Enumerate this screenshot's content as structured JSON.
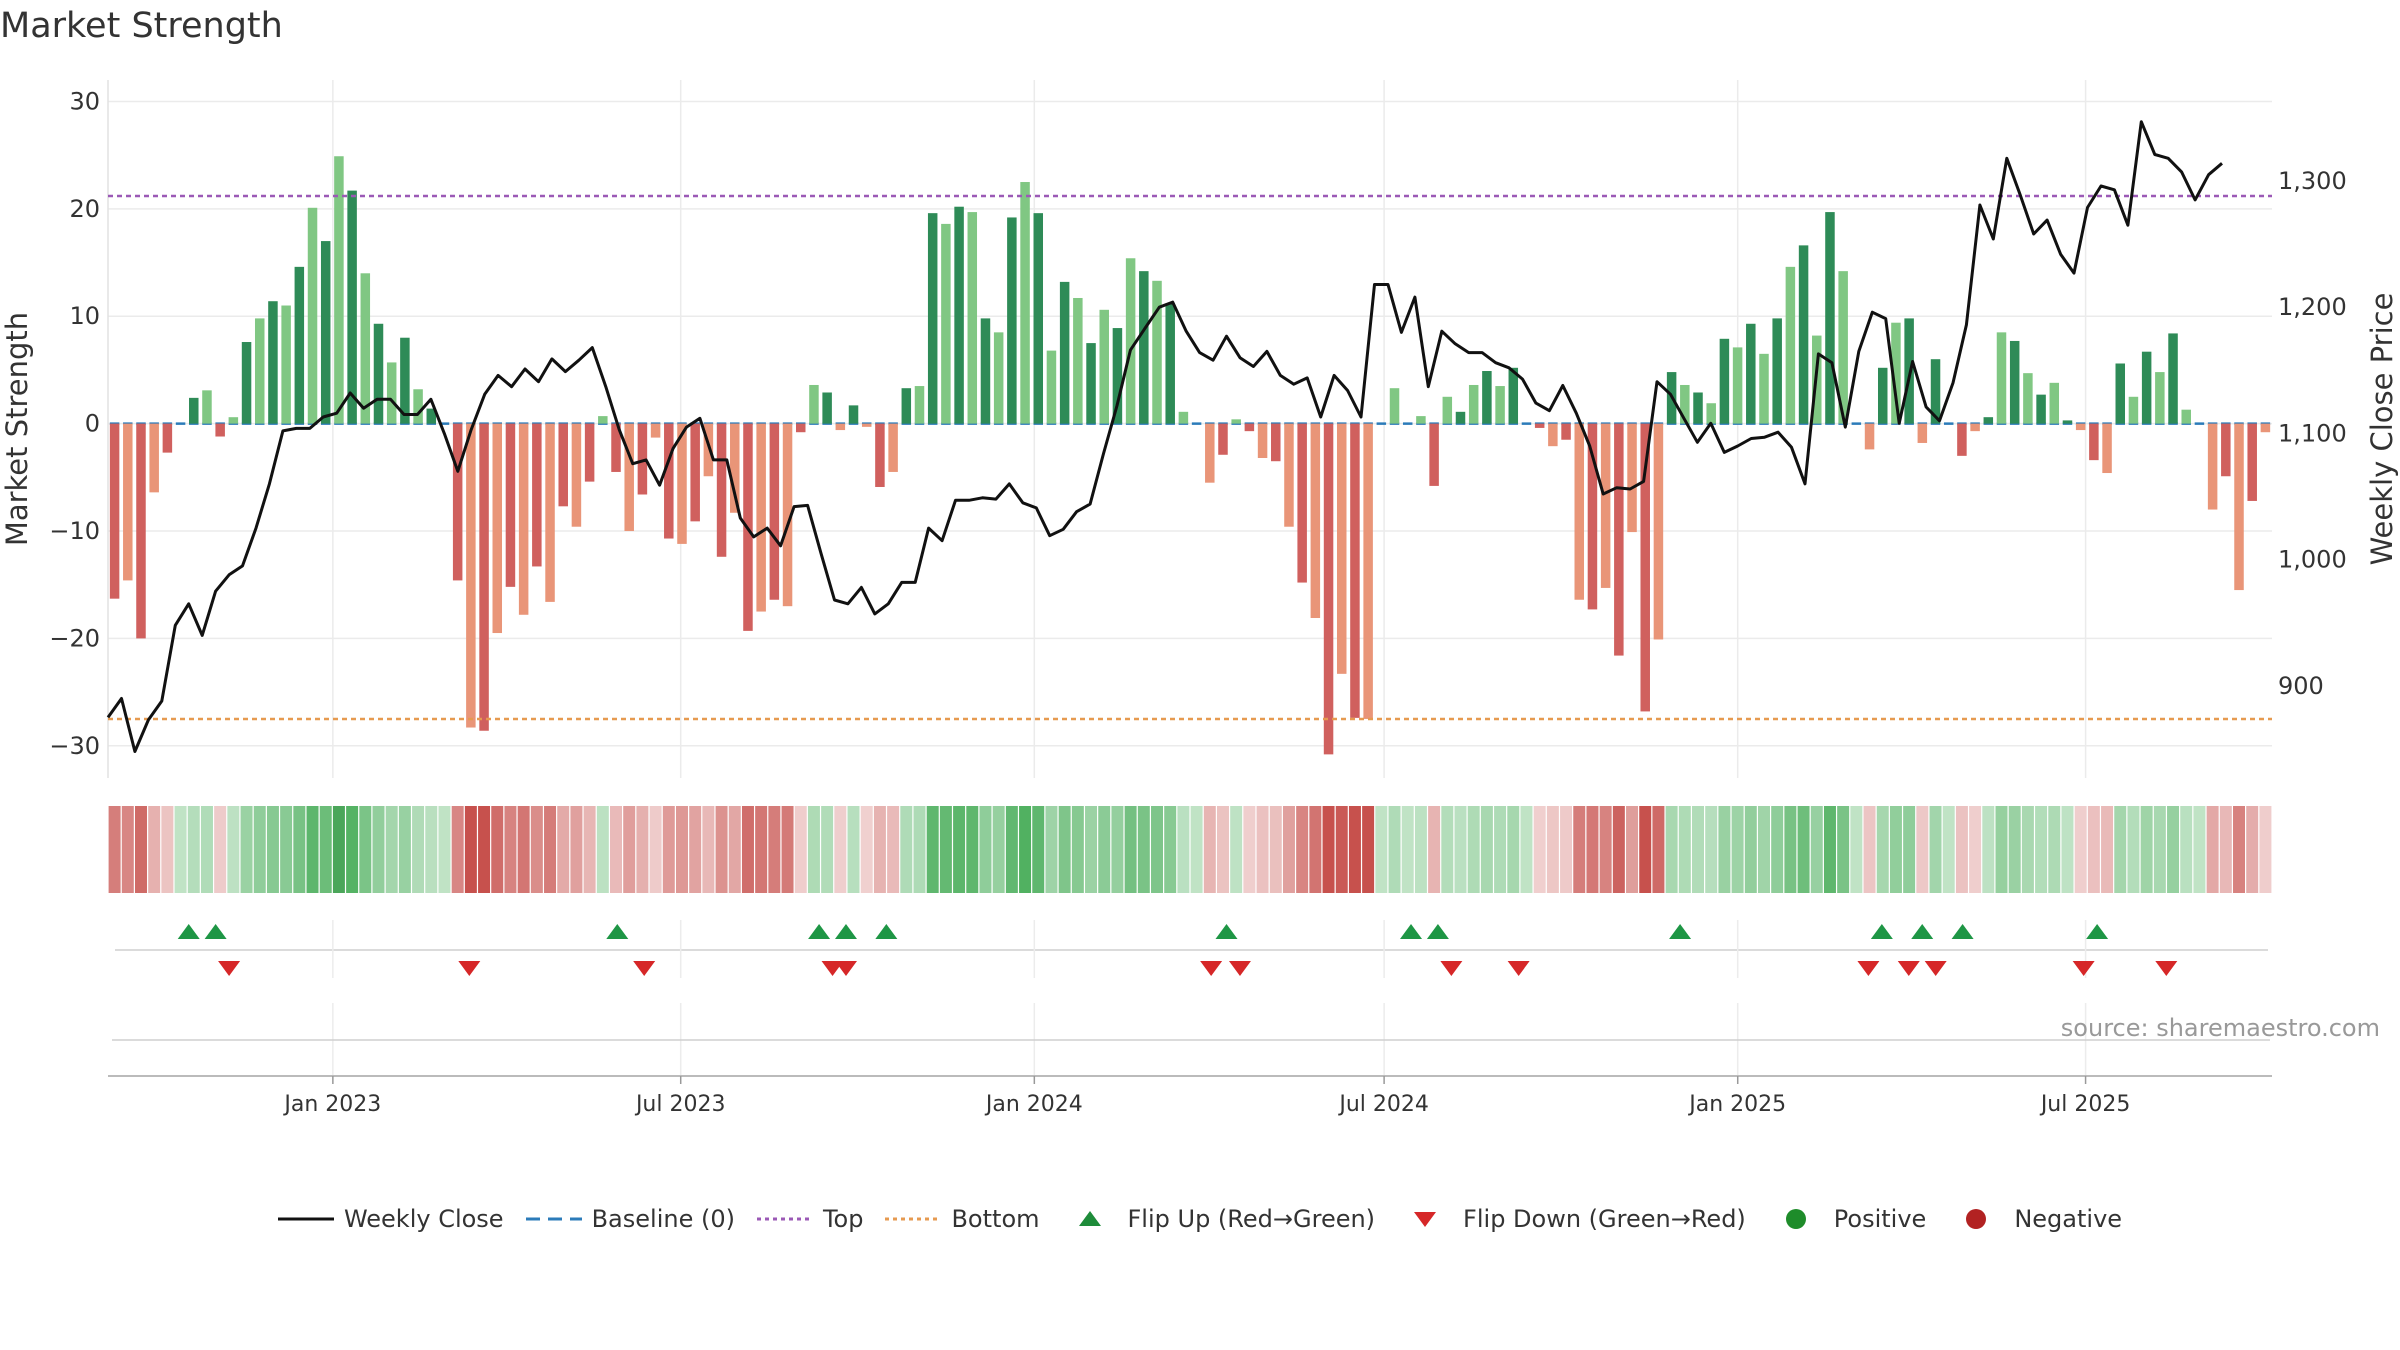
{
  "chart_data": {
    "type": "bar",
    "title": "Market Strength",
    "ylabel_left": "Market Strength",
    "ylabel_right": "Weekly Close Price",
    "left_axis": {
      "ylim": [
        -33,
        32
      ],
      "ticks": [
        30,
        20,
        10,
        0,
        -10,
        -20,
        -30
      ],
      "tick_labels": [
        "30",
        "20",
        "10",
        "0",
        "−10",
        "−20",
        "−30"
      ]
    },
    "right_axis": {
      "ylim": [
        827,
        1380
      ],
      "ticks": [
        1300,
        1200,
        1100,
        1000,
        900
      ],
      "tick_labels": [
        "1,300",
        "1,200",
        "1,100",
        "1,000",
        "900"
      ]
    },
    "x_axis": {
      "start": "2022-09-06",
      "end": "2025-10-06",
      "ticks": [
        "2023-01-01",
        "2023-07-01",
        "2024-01-01",
        "2024-07-01",
        "2025-01-01",
        "2025-07-01"
      ],
      "tick_labels": [
        "Jan 2023",
        "Jul 2023",
        "Jan 2024",
        "Jul 2024",
        "Jan 2025",
        "Jul 2025"
      ]
    },
    "grid": true,
    "reference_lines": {
      "top": 21.2,
      "bottom": -27.5,
      "baseline": 0
    },
    "strength_values": [
      -16.3,
      -14.6,
      -20,
      -6.4,
      -2.7,
      0,
      2.4,
      3.1,
      -1.2,
      0.6,
      7.6,
      9.8,
      11.4,
      11,
      14.6,
      20.1,
      17,
      24.9,
      21.7,
      14,
      9.3,
      5.7,
      8,
      3.2,
      1.4,
      0,
      -14.6,
      -28.3,
      -28.6,
      -19.5,
      -15.2,
      -17.8,
      -13.3,
      -16.6,
      -7.7,
      -9.6,
      -5.4,
      0.7,
      -4.5,
      -10,
      -6.6,
      -1.3,
      -10.7,
      -11.2,
      -9.1,
      -4.9,
      -12.4,
      -8.3,
      -19.3,
      -17.5,
      -16.4,
      -17,
      -0.8,
      3.6,
      2.9,
      -0.6,
      1.7,
      -0.3,
      -5.9,
      -4.5,
      3.3,
      3.5,
      19.6,
      18.6,
      20.2,
      19.7,
      9.8,
      8.5,
      19.2,
      22.5,
      19.6,
      6.8,
      13.2,
      11.7,
      7.5,
      10.6,
      8.9,
      15.4,
      14.2,
      13.3,
      11.2,
      1.1,
      0,
      -5.5,
      -2.9,
      0.4,
      -0.7,
      -3.2,
      -3.5,
      -9.6,
      -14.8,
      -18.1,
      -30.8,
      -23.3,
      -27.4,
      -27.5,
      0,
      3.3,
      0,
      0.7,
      -5.8,
      2.5,
      1.1,
      3.6,
      4.9,
      3.5,
      5.2,
      0,
      -0.4,
      -2.1,
      -1.5,
      -16.4,
      -17.3,
      -15.3,
      -21.6,
      -10.1,
      -26.8,
      -20.1,
      4.8,
      3.6,
      2.9,
      1.9,
      7.9,
      7.1,
      9.3,
      6.5,
      9.8,
      14.6,
      16.6,
      8.2,
      19.7,
      14.2,
      0,
      -2.4,
      5.2,
      9.4,
      9.8,
      -1.8,
      6,
      0,
      -3,
      -0.7,
      0.6,
      8.5,
      7.7,
      4.7,
      2.7,
      3.8,
      0.3,
      -0.6,
      -3.4,
      -4.6,
      5.6,
      2.5,
      6.7,
      4.8,
      8.4,
      1.3,
      0,
      -8,
      -4.9,
      -15.5,
      -7.2,
      -0.8
    ],
    "weekly_close": [
      {
        "x": "2022-09-06",
        "y": 875
      },
      {
        "x": "2022-09-13",
        "y": 890
      },
      {
        "x": "2022-09-20",
        "y": 848
      },
      {
        "x": "2022-09-27",
        "y": 873
      },
      {
        "x": "2022-10-04",
        "y": 888
      },
      {
        "x": "2022-10-11",
        "y": 948
      },
      {
        "x": "2022-10-18",
        "y": 965
      },
      {
        "x": "2022-10-25",
        "y": 940
      },
      {
        "x": "2022-11-01",
        "y": 975
      },
      {
        "x": "2022-11-08",
        "y": 988
      },
      {
        "x": "2022-11-15",
        "y": 995
      },
      {
        "x": "2022-11-22",
        "y": 1025
      },
      {
        "x": "2022-11-29",
        "y": 1060
      },
      {
        "x": "2022-12-06",
        "y": 1102
      },
      {
        "x": "2022-12-13",
        "y": 1104
      },
      {
        "x": "2022-12-20",
        "y": 1104
      },
      {
        "x": "2022-12-27",
        "y": 1113
      },
      {
        "x": "2023-01-03",
        "y": 1116
      },
      {
        "x": "2023-01-10",
        "y": 1132
      },
      {
        "x": "2023-01-17",
        "y": 1120
      },
      {
        "x": "2023-01-24",
        "y": 1127
      },
      {
        "x": "2023-01-31",
        "y": 1127
      },
      {
        "x": "2023-02-07",
        "y": 1115
      },
      {
        "x": "2023-02-14",
        "y": 1115
      },
      {
        "x": "2023-02-21",
        "y": 1127
      },
      {
        "x": "2023-02-28",
        "y": 1100
      },
      {
        "x": "2023-03-07",
        "y": 1070
      },
      {
        "x": "2023-03-14",
        "y": 1103
      },
      {
        "x": "2023-03-21",
        "y": 1131
      },
      {
        "x": "2023-03-28",
        "y": 1146
      },
      {
        "x": "2023-04-04",
        "y": 1137
      },
      {
        "x": "2023-04-11",
        "y": 1151
      },
      {
        "x": "2023-04-18",
        "y": 1141
      },
      {
        "x": "2023-04-25",
        "y": 1159
      },
      {
        "x": "2023-05-02",
        "y": 1149
      },
      {
        "x": "2023-05-09",
        "y": 1158
      },
      {
        "x": "2023-05-16",
        "y": 1168
      },
      {
        "x": "2023-05-23",
        "y": 1137
      },
      {
        "x": "2023-05-30",
        "y": 1103
      },
      {
        "x": "2023-06-06",
        "y": 1076
      },
      {
        "x": "2023-06-13",
        "y": 1079
      },
      {
        "x": "2023-06-20",
        "y": 1059
      },
      {
        "x": "2023-06-27",
        "y": 1088
      },
      {
        "x": "2023-07-04",
        "y": 1105
      },
      {
        "x": "2023-07-11",
        "y": 1112
      },
      {
        "x": "2023-07-18",
        "y": 1079
      },
      {
        "x": "2023-07-25",
        "y": 1079
      },
      {
        "x": "2023-08-01",
        "y": 1033
      },
      {
        "x": "2023-08-08",
        "y": 1018
      },
      {
        "x": "2023-08-15",
        "y": 1025
      },
      {
        "x": "2023-08-22",
        "y": 1011
      },
      {
        "x": "2023-08-29",
        "y": 1042
      },
      {
        "x": "2023-09-05",
        "y": 1043
      },
      {
        "x": "2023-09-12",
        "y": 1005
      },
      {
        "x": "2023-09-19",
        "y": 968
      },
      {
        "x": "2023-09-26",
        "y": 965
      },
      {
        "x": "2023-10-03",
        "y": 978
      },
      {
        "x": "2023-10-10",
        "y": 957
      },
      {
        "x": "2023-10-17",
        "y": 965
      },
      {
        "x": "2023-10-24",
        "y": 982
      },
      {
        "x": "2023-10-31",
        "y": 982
      },
      {
        "x": "2023-11-07",
        "y": 1025
      },
      {
        "x": "2023-11-14",
        "y": 1015
      },
      {
        "x": "2023-11-21",
        "y": 1047
      },
      {
        "x": "2023-11-28",
        "y": 1047
      },
      {
        "x": "2023-12-05",
        "y": 1049
      },
      {
        "x": "2023-12-12",
        "y": 1048
      },
      {
        "x": "2023-12-19",
        "y": 1060
      },
      {
        "x": "2023-12-26",
        "y": 1045
      },
      {
        "x": "2024-01-02",
        "y": 1041
      },
      {
        "x": "2024-01-09",
        "y": 1019
      },
      {
        "x": "2024-01-16",
        "y": 1024
      },
      {
        "x": "2024-01-23",
        "y": 1038
      },
      {
        "x": "2024-01-30",
        "y": 1044
      },
      {
        "x": "2024-02-06",
        "y": 1084
      },
      {
        "x": "2024-02-13",
        "y": 1122
      },
      {
        "x": "2024-02-20",
        "y": 1166
      },
      {
        "x": "2024-02-27",
        "y": 1182
      },
      {
        "x": "2024-03-06",
        "y": 1200
      },
      {
        "x": "2024-03-13",
        "y": 1204
      },
      {
        "x": "2024-03-20",
        "y": 1181
      },
      {
        "x": "2024-03-27",
        "y": 1164
      },
      {
        "x": "2024-04-03",
        "y": 1158
      },
      {
        "x": "2024-04-10",
        "y": 1177
      },
      {
        "x": "2024-04-17",
        "y": 1160
      },
      {
        "x": "2024-04-24",
        "y": 1153
      },
      {
        "x": "2024-05-01",
        "y": 1165
      },
      {
        "x": "2024-05-08",
        "y": 1146
      },
      {
        "x": "2024-05-15",
        "y": 1139
      },
      {
        "x": "2024-05-22",
        "y": 1144
      },
      {
        "x": "2024-05-29",
        "y": 1113
      },
      {
        "x": "2024-06-05",
        "y": 1146
      },
      {
        "x": "2024-06-12",
        "y": 1134
      },
      {
        "x": "2024-06-19",
        "y": 1113
      },
      {
        "x": "2024-06-26",
        "y": 1218
      },
      {
        "x": "2024-07-03",
        "y": 1218
      },
      {
        "x": "2024-07-10",
        "y": 1180
      },
      {
        "x": "2024-07-17",
        "y": 1208
      },
      {
        "x": "2024-07-24",
        "y": 1137
      },
      {
        "x": "2024-07-31",
        "y": 1181
      },
      {
        "x": "2024-08-07",
        "y": 1171
      },
      {
        "x": "2024-08-14",
        "y": 1164
      },
      {
        "x": "2024-08-21",
        "y": 1164
      },
      {
        "x": "2024-08-28",
        "y": 1156
      },
      {
        "x": "2024-09-04",
        "y": 1152
      },
      {
        "x": "2024-09-11",
        "y": 1143
      },
      {
        "x": "2024-09-18",
        "y": 1124
      },
      {
        "x": "2024-09-25",
        "y": 1118
      },
      {
        "x": "2024-10-02",
        "y": 1138
      },
      {
        "x": "2024-10-09",
        "y": 1116
      },
      {
        "x": "2024-10-16",
        "y": 1090
      },
      {
        "x": "2024-10-23",
        "y": 1052
      },
      {
        "x": "2024-10-30",
        "y": 1057
      },
      {
        "x": "2024-11-06",
        "y": 1056
      },
      {
        "x": "2024-11-13",
        "y": 1062
      },
      {
        "x": "2024-11-20",
        "y": 1141
      },
      {
        "x": "2024-11-27",
        "y": 1131
      },
      {
        "x": "2024-12-04",
        "y": 1112
      },
      {
        "x": "2024-12-11",
        "y": 1093
      },
      {
        "x": "2024-12-18",
        "y": 1108
      },
      {
        "x": "2024-12-25",
        "y": 1085
      },
      {
        "x": "2025-01-01",
        "y": 1090
      },
      {
        "x": "2025-01-08",
        "y": 1096
      },
      {
        "x": "2025-01-15",
        "y": 1097
      },
      {
        "x": "2025-01-22",
        "y": 1101
      },
      {
        "x": "2025-01-29",
        "y": 1089
      },
      {
        "x": "2025-02-05",
        "y": 1060
      },
      {
        "x": "2025-02-12",
        "y": 1163
      },
      {
        "x": "2025-02-19",
        "y": 1156
      },
      {
        "x": "2025-02-26",
        "y": 1105
      },
      {
        "x": "2025-03-05",
        "y": 1165
      },
      {
        "x": "2025-03-12",
        "y": 1196
      },
      {
        "x": "2025-03-19",
        "y": 1191
      },
      {
        "x": "2025-03-26",
        "y": 1108
      },
      {
        "x": "2025-04-02",
        "y": 1157
      },
      {
        "x": "2025-04-09",
        "y": 1121
      },
      {
        "x": "2025-04-16",
        "y": 1110
      },
      {
        "x": "2025-04-23",
        "y": 1140
      },
      {
        "x": "2025-04-30",
        "y": 1186
      },
      {
        "x": "2025-05-07",
        "y": 1281
      },
      {
        "x": "2025-05-14",
        "y": 1254
      },
      {
        "x": "2025-05-21",
        "y": 1318
      },
      {
        "x": "2025-05-28",
        "y": 1289
      },
      {
        "x": "2025-06-04",
        "y": 1258
      },
      {
        "x": "2025-06-11",
        "y": 1269
      },
      {
        "x": "2025-06-18",
        "y": 1242
      },
      {
        "x": "2025-06-25",
        "y": 1227
      },
      {
        "x": "2025-07-02",
        "y": 1279
      },
      {
        "x": "2025-07-09",
        "y": 1296
      },
      {
        "x": "2025-07-16",
        "y": 1293
      },
      {
        "x": "2025-07-23",
        "y": 1265
      },
      {
        "x": "2025-07-30",
        "y": 1347
      },
      {
        "x": "2025-08-06",
        "y": 1321
      },
      {
        "x": "2025-08-13",
        "y": 1318
      },
      {
        "x": "2025-08-20",
        "y": 1307
      },
      {
        "x": "2025-08-27",
        "y": 1285
      },
      {
        "x": "2025-09-03",
        "y": 1305
      },
      {
        "x": "2025-09-10",
        "y": 1314
      }
    ],
    "flip_up": [
      "2022-10-18",
      "2022-11-01",
      "2023-05-29",
      "2023-09-11",
      "2023-09-25",
      "2023-10-16",
      "2024-04-10",
      "2024-07-15",
      "2024-07-29",
      "2024-12-02",
      "2025-03-17",
      "2025-04-07",
      "2025-04-28",
      "2025-07-07"
    ],
    "flip_down": [
      "2022-11-08",
      "2023-03-13",
      "2023-06-12",
      "2023-09-18",
      "2023-09-25",
      "2024-04-02",
      "2024-04-17",
      "2024-08-05",
      "2024-09-09",
      "2025-03-10",
      "2025-03-31",
      "2025-04-14",
      "2025-06-30",
      "2025-08-12"
    ],
    "legend": [
      {
        "label": "Weekly Close",
        "marker": "line",
        "color": "#111111"
      },
      {
        "label": "Baseline (0)",
        "marker": "dash",
        "color": "#2b7bb9"
      },
      {
        "label": "Top",
        "marker": "dot",
        "color": "#9b59b6"
      },
      {
        "label": "Bottom",
        "marker": "dot",
        "color": "#e69a50"
      },
      {
        "label": "Flip Up (Red→Green)",
        "marker": "triangle-up",
        "color": "#1e8c3a"
      },
      {
        "label": "Flip Down (Green→Red)",
        "marker": "triangle-down",
        "color": "#d62728"
      },
      {
        "label": "Positive",
        "marker": "circle",
        "color": "#1e8c2a"
      },
      {
        "label": "Negative",
        "marker": "circle",
        "color": "#b22222"
      }
    ],
    "legend_placement": "bottom"
  },
  "source": "source: sharemaestro.com",
  "colors": {
    "pos_dark": "#2e8b57",
    "pos_light": "#80c783",
    "neg_dark": "#d0605e",
    "neg_light": "#e99578",
    "top_line": "#9b59b6",
    "bottom_line": "#e69a50",
    "baseline": "#2b7bb9",
    "price_line": "#111111",
    "flip_up": "#1e9645",
    "flip_down": "#d62728"
  }
}
